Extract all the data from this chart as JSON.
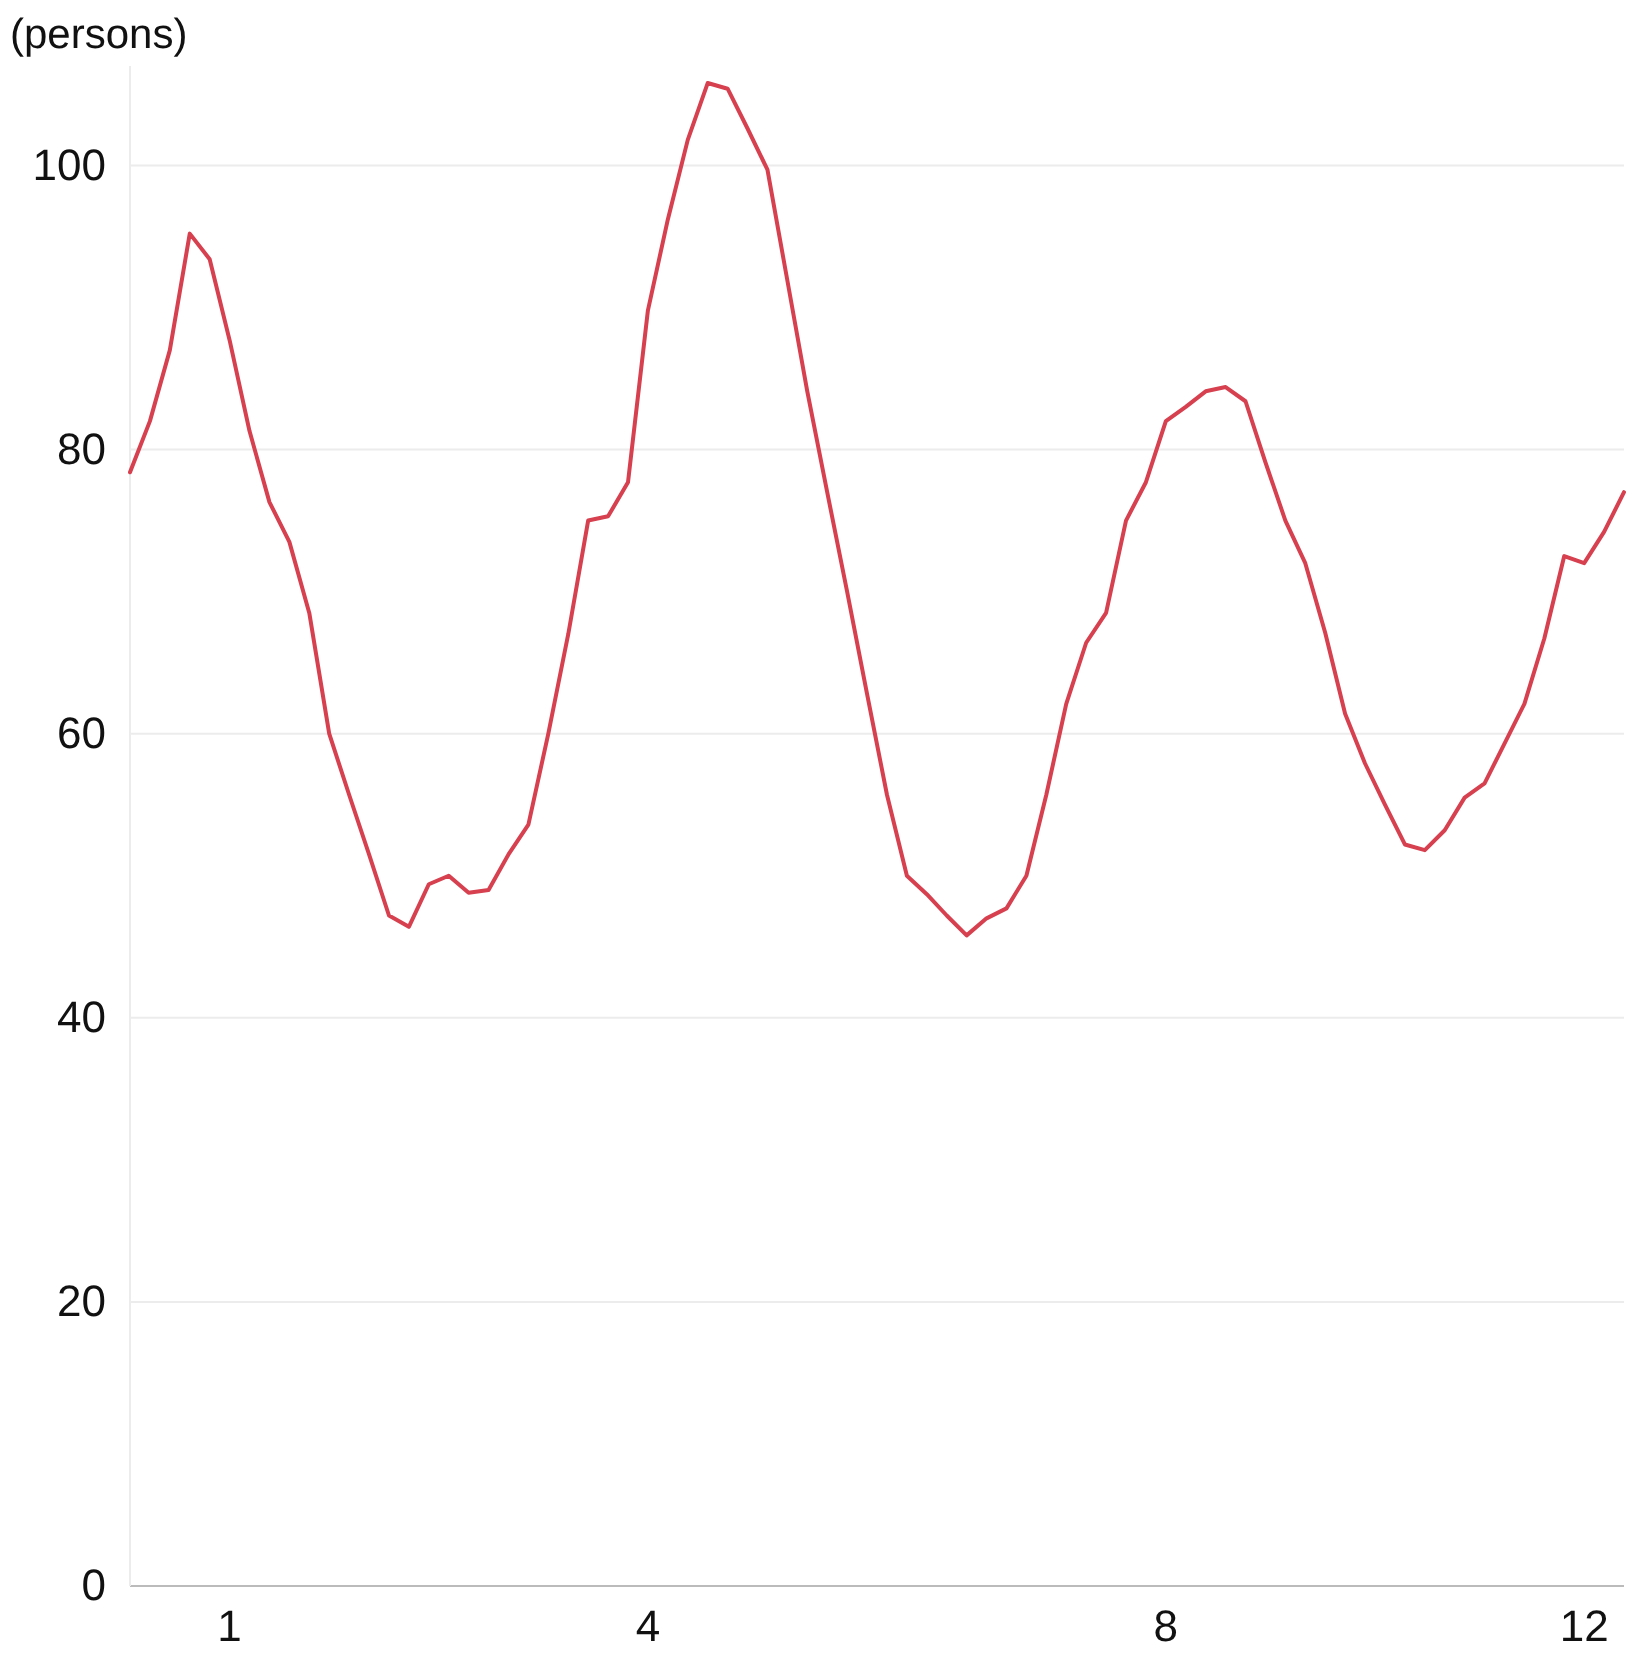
{
  "chart_data": {
    "type": "line",
    "ylabel": "(persons)",
    "grid": "y",
    "marker": "none",
    "line_style": "solid",
    "ylim": [
      0,
      107
    ],
    "yticks": [
      0,
      20,
      40,
      60,
      80,
      100
    ],
    "categories": [
      null,
      null,
      null,
      null,
      null,
      "1",
      null,
      null,
      null,
      null,
      null,
      null,
      null,
      null,
      null,
      null,
      null,
      null,
      null,
      null,
      null,
      null,
      null,
      null,
      null,
      null,
      "4",
      null,
      null,
      null,
      null,
      null,
      null,
      null,
      null,
      null,
      null,
      null,
      null,
      null,
      null,
      null,
      null,
      null,
      null,
      null,
      null,
      null,
      null,
      null,
      null,
      null,
      "8",
      null,
      null,
      null,
      null,
      null,
      null,
      null,
      null,
      null,
      null,
      null,
      null,
      null,
      null,
      null,
      null,
      null,
      null,
      null,
      null,
      "12",
      null,
      null
    ],
    "series": [
      {
        "color": "#d6404f",
        "values": [
          78.4,
          82,
          87,
          95.2,
          93.4,
          87.7,
          81.3,
          76.3,
          73.5,
          68.5,
          60,
          55.7,
          51.5,
          47.2,
          46.4,
          49.4,
          50,
          48.8,
          49,
          51.5,
          53.6,
          60,
          67,
          75,
          75.3,
          77.7,
          89.8,
          96.2,
          101.8,
          105.8,
          105.4,
          102.6,
          99.7,
          91.9,
          84.1,
          77,
          70,
          62.8,
          55.7,
          50,
          48.7,
          47.2,
          45.8,
          47,
          47.7,
          50,
          55.7,
          62.1,
          66.4,
          68.5,
          75,
          77.7,
          82,
          83,
          84.1,
          84.4,
          83.4,
          79.1,
          75,
          72,
          67.1,
          61.4,
          57.9,
          55,
          52.2,
          51.8,
          53.2,
          55.5,
          56.5,
          59.3,
          62.1,
          66.7,
          72.5,
          72,
          74.2,
          77
        ]
      }
    ]
  }
}
